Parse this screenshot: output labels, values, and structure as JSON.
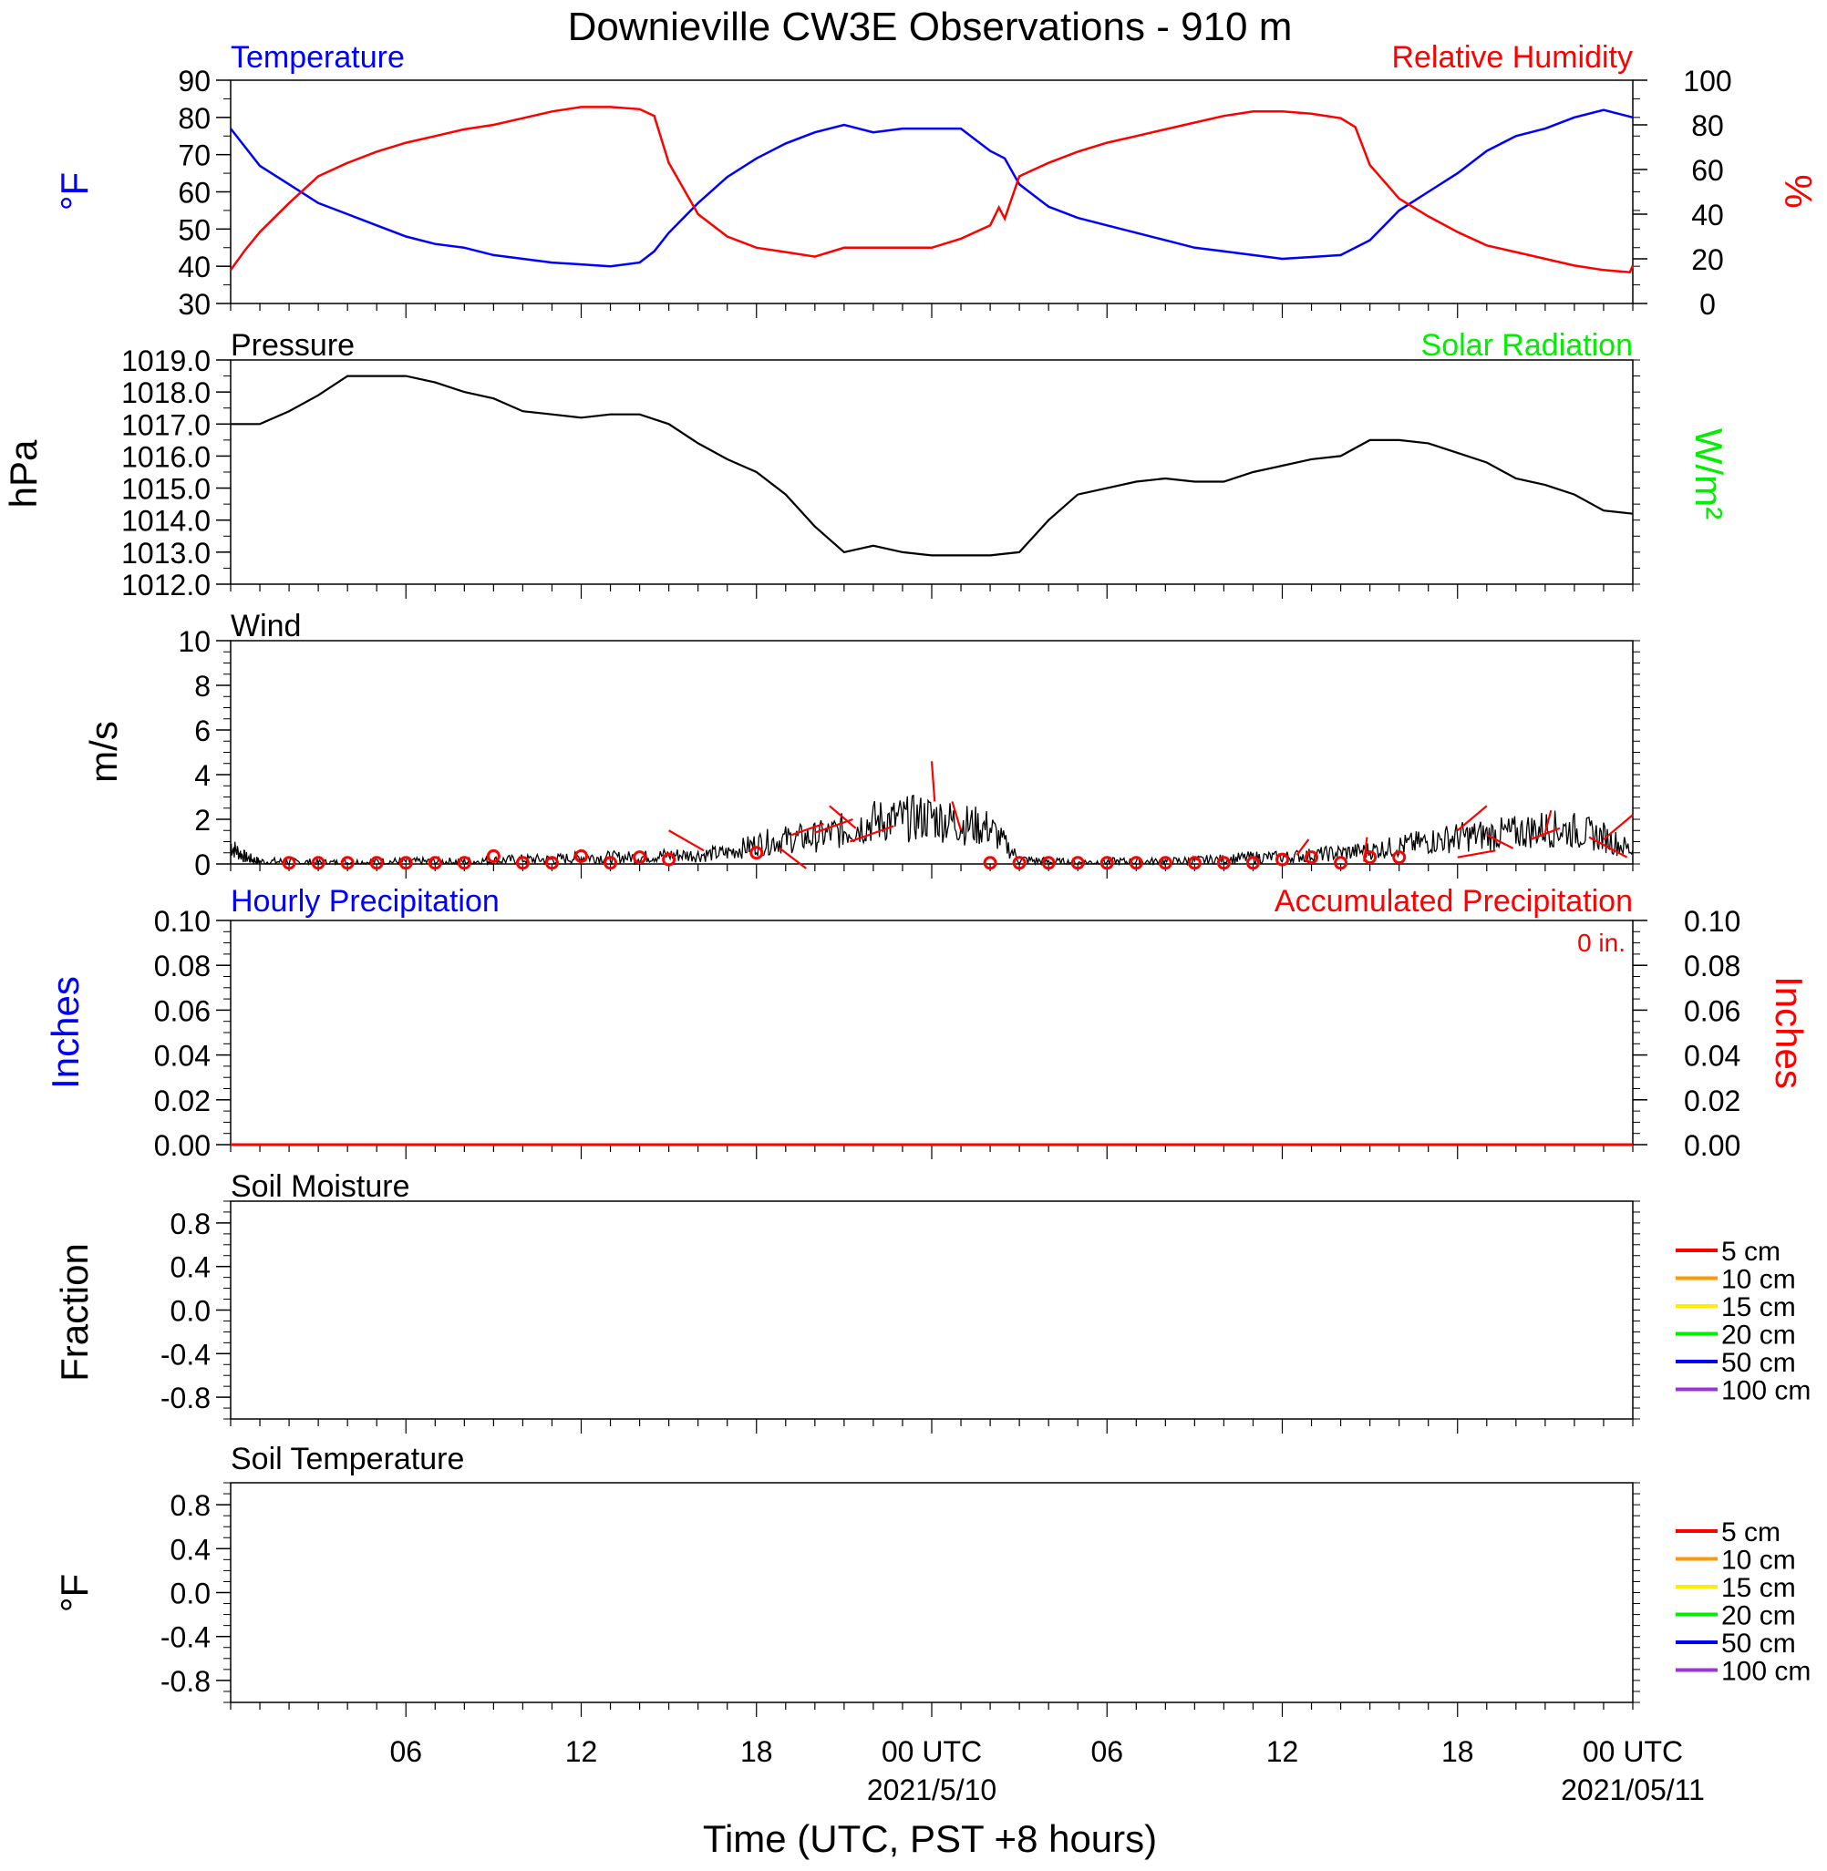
{
  "title": "Downieville CW3E Observations - 910 m",
  "xlabel": "Time (UTC, PST +8 hours)",
  "x_ticks": [
    {
      "h": 6,
      "label": "06",
      "date": ""
    },
    {
      "h": 12,
      "label": "12",
      "date": ""
    },
    {
      "h": 18,
      "label": "18",
      "date": ""
    },
    {
      "h": 24,
      "label": "00 UTC",
      "date": "2021/5/10"
    },
    {
      "h": 30,
      "label": "06",
      "date": ""
    },
    {
      "h": 36,
      "label": "12",
      "date": ""
    },
    {
      "h": 42,
      "label": "18",
      "date": ""
    },
    {
      "h": 48,
      "label": "00 UTC",
      "date": "2021/05/11"
    }
  ],
  "colors": {
    "axis": "#000000",
    "temperature": "#0000ff",
    "humidity": "#ff0000",
    "solar": "#00ee00",
    "wind": "#000000",
    "wind_marker": "#ff0000",
    "hourly_precip": "#0000ff",
    "accum_precip": "#ff0000"
  },
  "chart_data": [
    {
      "type": "line",
      "panel": "temperature-humidity",
      "title_left": "Temperature",
      "title_right": "Relative Humidity",
      "ylabel_left": "°F",
      "ylabel_right": "%",
      "ylim_left": [
        30,
        90
      ],
      "ylim_right": [
        0,
        100
      ],
      "yticks_left": [
        "30",
        "40",
        "50",
        "60",
        "70",
        "80",
        "90"
      ],
      "yticks_right": [
        "0",
        "20",
        "40",
        "60",
        "80",
        "100"
      ],
      "xlim_hours": [
        0,
        48
      ],
      "series": [
        {
          "name": "Temperature",
          "axis": "left",
          "x": [
            0,
            0.5,
            1,
            2,
            3,
            4,
            5,
            6,
            7,
            8,
            9,
            10,
            11,
            12,
            13,
            14,
            14.5,
            15,
            16,
            17,
            18,
            19,
            20,
            21,
            22,
            23,
            24,
            25,
            26,
            26.5,
            27,
            28,
            29,
            30,
            31,
            32,
            33,
            34,
            35,
            36,
            37,
            38,
            39,
            40,
            41,
            42,
            43,
            44,
            45,
            46,
            47,
            48
          ],
          "y": [
            77,
            72,
            67,
            62,
            57,
            54,
            51,
            48,
            46,
            45,
            43,
            42,
            41,
            40.5,
            40,
            41,
            44,
            49,
            57,
            64,
            69,
            73,
            76,
            78,
            76,
            77,
            77,
            77,
            71,
            69,
            62,
            56,
            53,
            51,
            49,
            47,
            45,
            44,
            43,
            42,
            42.5,
            43,
            47,
            55,
            60,
            65,
            71,
            75,
            77,
            80,
            82,
            80
          ]
        },
        {
          "name": "Relative Humidity",
          "axis": "right",
          "x": [
            0,
            0.5,
            1,
            2,
            3,
            4,
            5,
            6,
            7,
            8,
            9,
            10,
            11,
            12,
            13,
            14,
            14.5,
            15,
            16,
            17,
            18,
            19,
            20,
            21,
            22,
            23,
            24,
            25,
            26,
            26.3,
            26.5,
            27,
            28,
            29,
            30,
            31,
            32,
            33,
            34,
            35,
            36,
            37,
            38,
            38.5,
            39,
            40,
            41,
            42,
            43,
            44,
            45,
            46,
            47,
            47.9,
            48
          ],
          "y": [
            15,
            24,
            32,
            45,
            57,
            63,
            68,
            72,
            75,
            78,
            80,
            83,
            86,
            88,
            88,
            87,
            84,
            63,
            40,
            30,
            25,
            23,
            21,
            25,
            25,
            25,
            25,
            29,
            35,
            43,
            38,
            57,
            63,
            68,
            72,
            75,
            78,
            81,
            84,
            86,
            86,
            85,
            83,
            79,
            62,
            47,
            39,
            32,
            26,
            23,
            20,
            17,
            15,
            14,
            17
          ]
        }
      ]
    },
    {
      "type": "line",
      "panel": "pressure-solar",
      "title_left": "Pressure",
      "title_right": "Solar Radiation",
      "ylabel_left": "hPa",
      "ylabel_right": "W/m²",
      "ylim": [
        1012,
        1019
      ],
      "yticks": [
        "1012.0",
        "1013.0",
        "1014.0",
        "1015.0",
        "1016.0",
        "1017.0",
        "1018.0",
        "1019.0"
      ],
      "series": [
        {
          "name": "Pressure",
          "x": [
            0,
            1,
            2,
            3,
            4,
            5,
            6,
            7,
            8,
            9,
            10,
            11,
            12,
            13,
            14,
            15,
            16,
            17,
            18,
            19,
            20,
            21,
            22,
            23,
            24,
            25,
            26,
            27,
            28,
            29,
            30,
            31,
            32,
            33,
            34,
            35,
            36,
            37,
            38,
            39,
            40,
            41,
            42,
            43,
            44,
            45,
            46,
            47,
            48
          ],
          "y": [
            1017.0,
            1017.0,
            1017.4,
            1017.9,
            1018.5,
            1018.5,
            1018.5,
            1018.3,
            1018.0,
            1017.8,
            1017.4,
            1017.3,
            1017.2,
            1017.3,
            1017.3,
            1017.0,
            1016.4,
            1015.9,
            1015.5,
            1014.8,
            1013.8,
            1013.0,
            1013.2,
            1013.0,
            1012.9,
            1012.9,
            1012.9,
            1013.0,
            1014.0,
            1014.8,
            1015.0,
            1015.2,
            1015.3,
            1015.2,
            1015.2,
            1015.5,
            1015.7,
            1015.9,
            1016.0,
            1016.5,
            1016.5,
            1016.4,
            1016.1,
            1015.8,
            1015.3,
            1015.1,
            1014.8,
            1014.3,
            1014.2
          ]
        }
      ]
    },
    {
      "type": "line",
      "panel": "wind",
      "title_left": "Wind",
      "ylabel_left": "m/s",
      "ylim": [
        0,
        10
      ],
      "yticks": [
        "0",
        "2",
        "4",
        "6",
        "8",
        "10"
      ],
      "series": [
        {
          "name": "Wind",
          "x": [
            0,
            0.5,
            1,
            2,
            3,
            4,
            5,
            6,
            7,
            8,
            9,
            10,
            11,
            12,
            13,
            14,
            15,
            16,
            17,
            18,
            19,
            20,
            21,
            22,
            23,
            24,
            25,
            26,
            27,
            28,
            29,
            30,
            31,
            32,
            33,
            34,
            35,
            36,
            37,
            38,
            39,
            40,
            41,
            42,
            43,
            44,
            45,
            46,
            47,
            48
          ],
          "y": [
            0.8,
            0.3,
            0.1,
            0.1,
            0.05,
            0.05,
            0.1,
            0.1,
            0.1,
            0.1,
            0.15,
            0.2,
            0.2,
            0.3,
            0.3,
            0.3,
            0.4,
            0.4,
            0.5,
            0.9,
            1.1,
            1.2,
            1.5,
            1.9,
            2.0,
            2.1,
            1.8,
            1.6,
            0.2,
            0.1,
            0.05,
            0.1,
            0.1,
            0.1,
            0.15,
            0.2,
            0.3,
            0.3,
            0.4,
            0.5,
            0.6,
            0.8,
            1.0,
            1.2,
            1.3,
            1.4,
            1.6,
            1.5,
            1.2,
            0.6
          ]
        }
      ],
      "hourly_markers": {
        "hours": [
          2,
          3,
          4,
          5,
          6,
          7,
          8,
          9,
          10,
          11,
          12,
          13,
          14,
          15,
          18,
          26,
          27,
          28,
          29,
          30,
          31,
          32,
          33,
          34,
          35,
          36,
          37,
          38,
          39,
          40
        ],
        "speeds": [
          0.05,
          0.05,
          0.05,
          0.05,
          0.05,
          0.05,
          0.05,
          0.35,
          0.05,
          0.05,
          0.35,
          0.05,
          0.3,
          0.2,
          0.5,
          0.05,
          0.05,
          0.05,
          0.05,
          0.05,
          0.05,
          0.05,
          0.05,
          0.05,
          0.05,
          0.2,
          0.3,
          0.05,
          0.3,
          0.3
        ]
      },
      "wind_barbs": [
        {
          "x": 15.0,
          "y": 1.5,
          "dx": 1.2,
          "dy": -0.9
        },
        {
          "x": 18.8,
          "y": 0.7,
          "dx": 0.9,
          "dy": -0.9
        },
        {
          "x": 19.2,
          "y": 1.3,
          "dx": 1.1,
          "dy": 0.5
        },
        {
          "x": 20.5,
          "y": 2.6,
          "dx": 0.9,
          "dy": -1.0
        },
        {
          "x": 20.0,
          "y": 1.4,
          "dx": 1.3,
          "dy": 0.6
        },
        {
          "x": 21.2,
          "y": 1.0,
          "dx": 1.5,
          "dy": 0.7
        },
        {
          "x": 24.0,
          "y": 4.6,
          "dx": 0.1,
          "dy": -1.8
        },
        {
          "x": 24.7,
          "y": 2.8,
          "dx": 0.3,
          "dy": -1.3
        },
        {
          "x": 36.5,
          "y": 0.4,
          "dx": 0.4,
          "dy": 0.7
        },
        {
          "x": 38.8,
          "y": 0.1,
          "dx": 0.1,
          "dy": 1.1
        },
        {
          "x": 42.0,
          "y": 1.5,
          "dx": 1.0,
          "dy": 1.1
        },
        {
          "x": 42.0,
          "y": 0.3,
          "dx": 1.3,
          "dy": 0.3
        },
        {
          "x": 45.0,
          "y": 1.4,
          "dx": 0.2,
          "dy": 1.0
        },
        {
          "x": 44.5,
          "y": 1.1,
          "dx": 1.0,
          "dy": 0.5
        },
        {
          "x": 43.0,
          "y": 1.3,
          "dx": 0.9,
          "dy": -0.6
        },
        {
          "x": 46.5,
          "y": 1.2,
          "dx": 1.3,
          "dy": -0.9
        },
        {
          "x": 47.0,
          "y": 1.1,
          "dx": 1.0,
          "dy": 1.1
        }
      ]
    },
    {
      "type": "line",
      "panel": "precipitation",
      "title_left": "Hourly Precipitation",
      "title_right": "Accumulated Precipitation",
      "accum_total": "0 in.",
      "ylabel_left": "Inches",
      "ylabel_right": "Inches",
      "ylim": [
        0,
        0.1
      ],
      "yticks": [
        "0.00",
        "0.02",
        "0.04",
        "0.06",
        "0.08",
        "0.10"
      ],
      "series": [
        {
          "name": "Accumulated Precipitation",
          "x": [
            0,
            48
          ],
          "y": [
            0,
            0
          ]
        }
      ]
    },
    {
      "type": "line",
      "panel": "soil-moisture",
      "title_left": "Soil Moisture",
      "ylabel_left": "Fraction",
      "ylim": [
        -1,
        1
      ],
      "yticks": [
        "-0.8",
        "-0.4",
        "0.0",
        "0.4",
        "0.8"
      ],
      "legend": [
        {
          "label": "5 cm",
          "color": "#ff0000"
        },
        {
          "label": "10 cm",
          "color": "#ff9900"
        },
        {
          "label": "15 cm",
          "color": "#ffee00"
        },
        {
          "label": "20 cm",
          "color": "#00ee00"
        },
        {
          "label": "50 cm",
          "color": "#0000ff"
        },
        {
          "label": "100 cm",
          "color": "#9933dd"
        }
      ],
      "series": []
    },
    {
      "type": "line",
      "panel": "soil-temperature",
      "title_left": "Soil Temperature",
      "ylabel_left": "°F",
      "ylim": [
        -1,
        1
      ],
      "yticks": [
        "-0.8",
        "-0.4",
        "0.0",
        "0.4",
        "0.8"
      ],
      "legend": [
        {
          "label": "5 cm",
          "color": "#ff0000"
        },
        {
          "label": "10 cm",
          "color": "#ff9900"
        },
        {
          "label": "15 cm",
          "color": "#ffee00"
        },
        {
          "label": "20 cm",
          "color": "#00ee00"
        },
        {
          "label": "50 cm",
          "color": "#0000ff"
        },
        {
          "label": "100 cm",
          "color": "#9933dd"
        }
      ],
      "series": []
    }
  ]
}
